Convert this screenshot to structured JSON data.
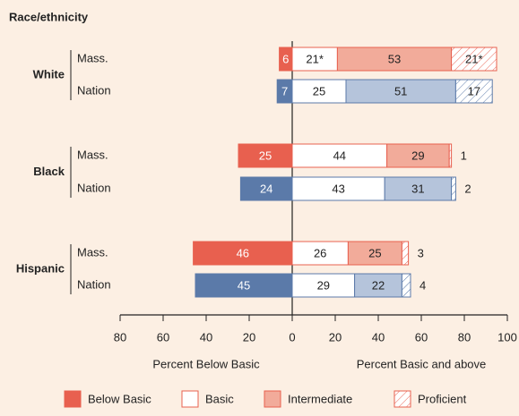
{
  "chart_data": {
    "type": "diverging-stacked-bar",
    "title": "Race/ethnicity",
    "xlim": [
      -80,
      100
    ],
    "xticks": [
      {
        "value": -80,
        "label": "80"
      },
      {
        "value": -60,
        "label": "60"
      },
      {
        "value": -40,
        "label": "40"
      },
      {
        "value": -20,
        "label": "20"
      },
      0,
      20,
      40,
      60,
      80,
      100
    ],
    "xlabel_left": "Percent Below Basic",
    "xlabel_right": "Percent Basic and above",
    "series": [
      {
        "name": "Below Basic",
        "color": "#e8604f",
        "negative": true
      },
      {
        "name": "Basic",
        "color": "#ffffff"
      },
      {
        "name": "Intermediate",
        "color": "#f2ab9a"
      },
      {
        "name": "Proficient",
        "color": "#ffffff",
        "hatch": true
      }
    ],
    "groups": [
      {
        "name": "White",
        "rows": [
          {
            "name": "Mass.",
            "edge": "#e8604f",
            "fills": [
              "#e8604f",
              "#ffffff",
              "#f2ab9a",
              "#ffffff"
            ],
            "values": [
              6,
              21,
              53,
              21
            ],
            "value_labels": [
              "6",
              "21*",
              "53",
              "21*"
            ]
          },
          {
            "name": "Nation",
            "edge": "#5b7aa9",
            "fills": [
              "#5b7aa9",
              "#ffffff",
              "#b5c4db",
              "#ffffff"
            ],
            "values": [
              7,
              25,
              51,
              17
            ]
          }
        ]
      },
      {
        "name": "Black",
        "rows": [
          {
            "name": "Mass.",
            "edge": "#e8604f",
            "fills": [
              "#e8604f",
              "#ffffff",
              "#f2ab9a",
              "#ffffff"
            ],
            "values": [
              25,
              44,
              29,
              1
            ]
          },
          {
            "name": "Nation",
            "edge": "#5b7aa9",
            "fills": [
              "#5b7aa9",
              "#ffffff",
              "#b5c4db",
              "#ffffff"
            ],
            "values": [
              24,
              43,
              31,
              2
            ]
          }
        ]
      },
      {
        "name": "Hispanic",
        "rows": [
          {
            "name": "Mass.",
            "edge": "#e8604f",
            "fills": [
              "#e8604f",
              "#ffffff",
              "#f2ab9a",
              "#ffffff"
            ],
            "values": [
              46,
              26,
              25,
              3
            ]
          },
          {
            "name": "Nation",
            "edge": "#5b7aa9",
            "fills": [
              "#5b7aa9",
              "#ffffff",
              "#b5c4db",
              "#ffffff"
            ],
            "values": [
              45,
              29,
              22,
              4
            ]
          }
        ]
      }
    ]
  }
}
